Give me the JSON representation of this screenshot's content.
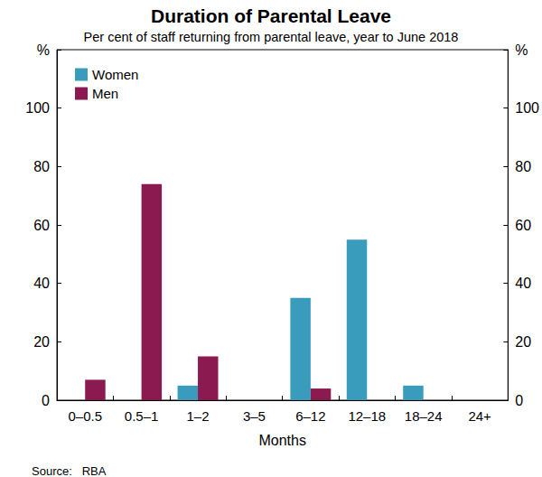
{
  "chart_data": {
    "type": "bar",
    "title": "Duration of Parental Leave",
    "subtitle": "Per cent of staff returning from parental leave, year to June 2018",
    "source": "Source:   RBA",
    "x_label": "Months",
    "categories": [
      "0–0.5",
      "0.5–1",
      "1–2",
      "3–5",
      "6–12",
      "12–18",
      "18–24",
      "24+"
    ],
    "series": [
      {
        "name": "Women",
        "color": "#3a9cbc",
        "values": [
          0,
          0,
          5,
          0,
          35,
          55,
          5,
          0
        ]
      },
      {
        "name": "Men",
        "color": "#8b1a50",
        "values": [
          7,
          74,
          15,
          0,
          4,
          0,
          0,
          0
        ]
      }
    ],
    "ylim": [
      0,
      120
    ],
    "yticks": [
      0,
      20,
      40,
      60,
      80,
      100,
      {
        "value": 120,
        "label": "%"
      }
    ],
    "y2lim": [
      0,
      120
    ],
    "y2ticks": [
      0,
      20,
      40,
      60,
      80,
      100,
      {
        "value": 120,
        "label": "%"
      }
    ],
    "legend": "top-left",
    "grid": false,
    "data_labels": false
  }
}
